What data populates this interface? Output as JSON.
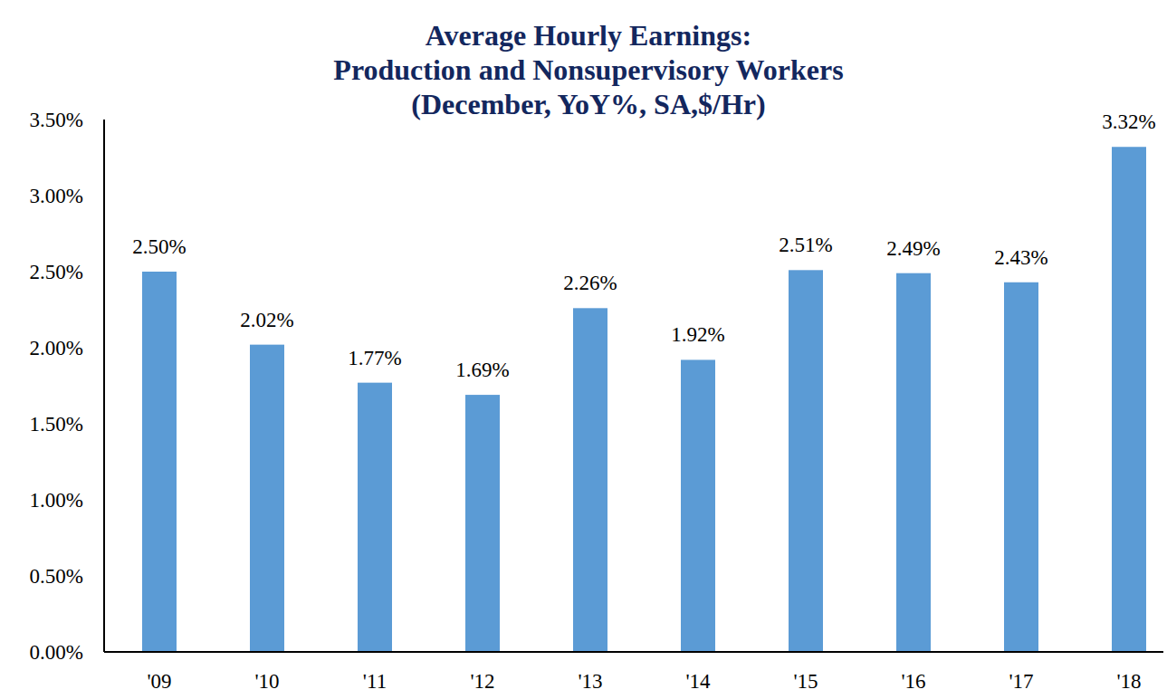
{
  "chart_data": {
    "type": "bar",
    "title": "Average Hourly Earnings:\nProduction and Nonsupervisory Workers\n(December, YoY%, SA,$/Hr)",
    "categories": [
      "'09",
      "'10",
      "'11",
      "'12",
      "'13",
      "'14",
      "'15",
      "'16",
      "'17",
      "'18"
    ],
    "values": [
      2.5,
      2.02,
      1.77,
      1.69,
      2.26,
      1.92,
      2.51,
      2.49,
      2.43,
      3.32
    ],
    "value_labels": [
      "2.50%",
      "2.02%",
      "1.77%",
      "1.69%",
      "2.26%",
      "1.92%",
      "2.51%",
      "2.49%",
      "2.43%",
      "3.32%"
    ],
    "color": "#5b9bd5",
    "ylim": [
      0,
      3.5
    ],
    "yticks": [
      {
        "value": 0,
        "label": "0.00%"
      },
      {
        "value": 0.5,
        "label": "0.50%"
      },
      {
        "value": 1,
        "label": "1.00%"
      },
      {
        "value": 1.5,
        "label": "1.50%"
      },
      {
        "value": 2,
        "label": "2.00%"
      },
      {
        "value": 2.5,
        "label": "2.50%"
      },
      {
        "value": 3,
        "label": "3.00%"
      },
      {
        "value": 3.5,
        "label": "3.50%"
      }
    ],
    "grid": false,
    "data_labels": true
  }
}
